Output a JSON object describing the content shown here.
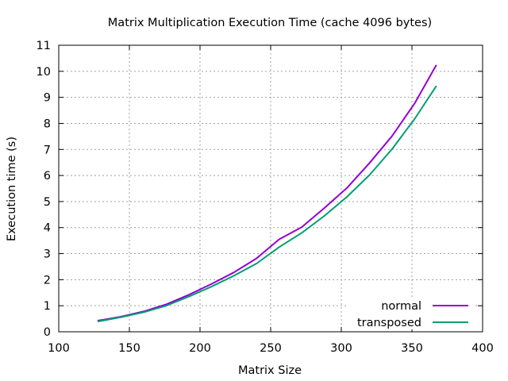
{
  "chart_data": {
    "type": "line",
    "title": "Matrix Multiplication Execution Time (cache 4096 bytes)",
    "xlabel": "Matrix Size",
    "ylabel": "Execution time (s)",
    "xlim": [
      100,
      400
    ],
    "ylim": [
      0,
      11
    ],
    "xticks": [
      100,
      150,
      200,
      250,
      300,
      350,
      400
    ],
    "yticks": [
      0,
      1,
      2,
      3,
      4,
      5,
      6,
      7,
      8,
      9,
      10,
      11
    ],
    "grid": true,
    "legend_position": "bottom-right",
    "series": [
      {
        "name": "normal",
        "color": "#9400d3",
        "points": [
          [
            128,
            0.43
          ],
          [
            144,
            0.58
          ],
          [
            160,
            0.78
          ],
          [
            176,
            1.05
          ],
          [
            192,
            1.42
          ],
          [
            208,
            1.83
          ],
          [
            224,
            2.28
          ],
          [
            240,
            2.82
          ],
          [
            256,
            3.55
          ],
          [
            272,
            4.02
          ],
          [
            288,
            4.75
          ],
          [
            304,
            5.52
          ],
          [
            320,
            6.48
          ],
          [
            336,
            7.52
          ],
          [
            352,
            8.78
          ],
          [
            367,
            10.22
          ]
        ]
      },
      {
        "name": "transposed",
        "color": "#009e73",
        "points": [
          [
            128,
            0.4
          ],
          [
            144,
            0.56
          ],
          [
            160,
            0.75
          ],
          [
            176,
            1.0
          ],
          [
            192,
            1.35
          ],
          [
            208,
            1.73
          ],
          [
            224,
            2.15
          ],
          [
            240,
            2.62
          ],
          [
            256,
            3.25
          ],
          [
            272,
            3.8
          ],
          [
            288,
            4.45
          ],
          [
            304,
            5.18
          ],
          [
            320,
            6.02
          ],
          [
            336,
            7.02
          ],
          [
            352,
            8.18
          ],
          [
            367,
            9.42
          ]
        ]
      }
    ]
  }
}
